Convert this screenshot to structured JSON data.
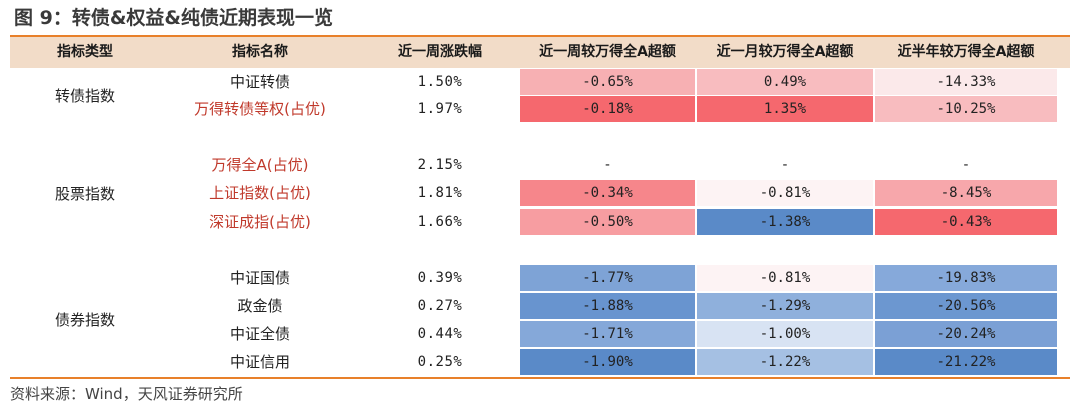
{
  "title": "图 9：转债&权益&纯债近期表现一览",
  "headers": [
    "指标类型",
    "指标名称",
    "近一周涨跌幅",
    "近一周较万得全A超额",
    "近一月较万得全A超额",
    "近半年较万得全A超额"
  ],
  "groups": [
    {
      "category": "转债指数",
      "rows": [
        {
          "name": "中证转债",
          "red": false,
          "week": "1.50%",
          "ex1w": "-0.65%",
          "ex1m": "0.49%",
          "ex6m": "-14.33%"
        },
        {
          "name": "万得转债等权(占优)",
          "red": true,
          "week": "1.97%",
          "ex1w": "-0.18%",
          "ex1m": "1.35%",
          "ex6m": "-10.25%"
        }
      ]
    },
    {
      "category": "股票指数",
      "rows": [
        {
          "name": "万得全A(占优)",
          "red": true,
          "week": "2.15%",
          "ex1w": "-",
          "ex1m": "-",
          "ex6m": "-"
        },
        {
          "name": "上证指数(占优)",
          "red": true,
          "week": "1.81%",
          "ex1w": "-0.34%",
          "ex1m": "-0.81%",
          "ex6m": "-8.45%"
        },
        {
          "name": "深证成指(占优)",
          "red": true,
          "week": "1.66%",
          "ex1w": "-0.50%",
          "ex1m": "-1.38%",
          "ex6m": "-0.43%"
        }
      ]
    },
    {
      "category": "债券指数",
      "rows": [
        {
          "name": "中证国债",
          "red": false,
          "week": "0.39%",
          "ex1w": "-1.77%",
          "ex1m": "-0.81%",
          "ex6m": "-19.83%"
        },
        {
          "name": "政金债",
          "red": false,
          "week": "0.27%",
          "ex1w": "-1.88%",
          "ex1m": "-1.29%",
          "ex6m": "-20.56%"
        },
        {
          "name": "中证全债",
          "red": false,
          "week": "0.44%",
          "ex1w": "-1.71%",
          "ex1m": "-1.00%",
          "ex6m": "-20.24%"
        },
        {
          "name": "中证信用",
          "red": false,
          "week": "0.25%",
          "ex1w": "-1.90%",
          "ex1m": "-1.22%",
          "ex6m": "-21.22%"
        }
      ]
    }
  ],
  "heat_colors": {
    "转债指数.0.ex1w": "#f7b0b3",
    "转债指数.0.ex1m": "#f8bcbf",
    "转债指数.0.ex6m": "#fbe9ea",
    "转债指数.1.ex1w": "#f5686e",
    "转债指数.1.ex1m": "#f5686e",
    "转债指数.1.ex6m": "#f8bcbf",
    "股票指数.1.ex1w": "#f6868b",
    "股票指数.1.ex1m": "#fdf3f4",
    "股票指数.1.ex6m": "#f7a7ab",
    "股票指数.2.ex1w": "#f79da1",
    "股票指数.2.ex1m": "#5a8ac8",
    "股票指数.2.ex6m": "#f5686e",
    "债券指数.0.ex1w": "#7ea3d6",
    "债券指数.0.ex1m": "#fdf3f4",
    "债券指数.0.ex6m": "#86a9da",
    "债券指数.1.ex1w": "#6894cf",
    "债券指数.1.ex1m": "#8fb0dc",
    "债券指数.1.ex6m": "#6c97d0",
    "债券指数.2.ex1w": "#85a8d9",
    "债券指数.2.ex1m": "#d8e3f3",
    "债券指数.2.ex6m": "#7ba0d5",
    "债券指数.3.ex1w": "#5a8ac8",
    "债券指数.3.ex1m": "#a5c0e3",
    "债券指数.3.ex6m": "#5a8ac8"
  },
  "source": "资料来源：Wind，天风证券研究所"
}
